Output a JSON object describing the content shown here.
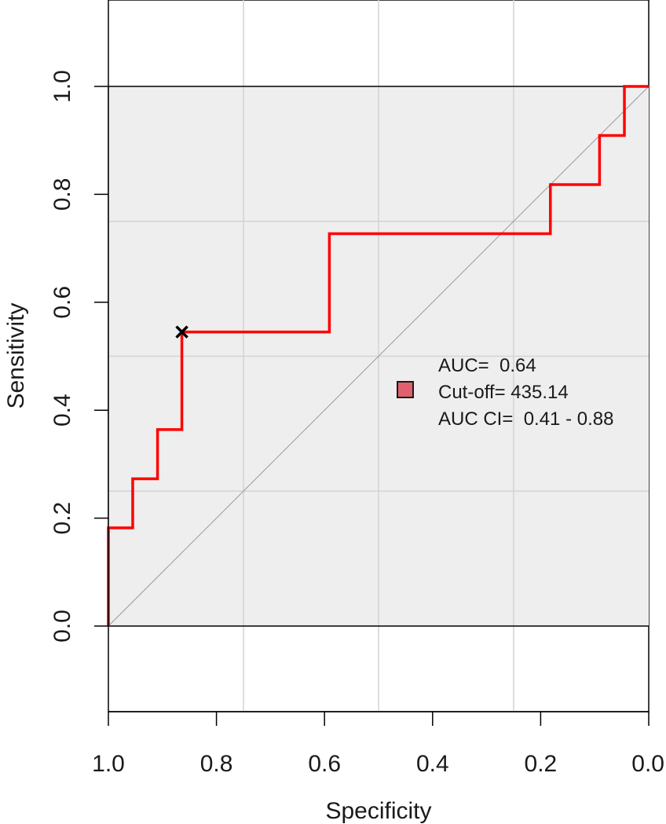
{
  "chart_data": {
    "type": "line",
    "title": "",
    "xlabel": "Specificity",
    "ylabel": "Sensitivity",
    "x_axis_reversed": true,
    "xlim": [
      1.0,
      0.0
    ],
    "ylim": [
      0.0,
      1.0
    ],
    "x_ticks": [
      "1.0",
      "0.8",
      "0.6",
      "0.4",
      "0.2",
      "0.0"
    ],
    "y_ticks": [
      "0.0",
      "0.2",
      "0.4",
      "0.6",
      "0.8",
      "1.0"
    ],
    "grid": true,
    "roc_curve": {
      "color": "#ff0000",
      "points": [
        {
          "specificity": 1.0,
          "sensitivity": 0.0
        },
        {
          "specificity": 1.0,
          "sensitivity": 0.182
        },
        {
          "specificity": 0.955,
          "sensitivity": 0.182
        },
        {
          "specificity": 0.955,
          "sensitivity": 0.273
        },
        {
          "specificity": 0.909,
          "sensitivity": 0.273
        },
        {
          "specificity": 0.909,
          "sensitivity": 0.364
        },
        {
          "specificity": 0.864,
          "sensitivity": 0.364
        },
        {
          "specificity": 0.864,
          "sensitivity": 0.545
        },
        {
          "specificity": 0.591,
          "sensitivity": 0.545
        },
        {
          "specificity": 0.591,
          "sensitivity": 0.727
        },
        {
          "specificity": 0.182,
          "sensitivity": 0.727
        },
        {
          "specificity": 0.182,
          "sensitivity": 0.818
        },
        {
          "specificity": 0.091,
          "sensitivity": 0.818
        },
        {
          "specificity": 0.091,
          "sensitivity": 0.909
        },
        {
          "specificity": 0.045,
          "sensitivity": 0.909
        },
        {
          "specificity": 0.045,
          "sensitivity": 1.0
        },
        {
          "specificity": 0.0,
          "sensitivity": 1.0
        }
      ]
    },
    "reference_line": {
      "from": [
        1.0,
        0.0
      ],
      "to": [
        0.0,
        1.0
      ],
      "color": "#999999"
    },
    "cutoff_point": {
      "specificity": 0.864,
      "sensitivity": 0.545,
      "marker": "x"
    },
    "annotations": [
      "AUC=  0.64",
      "Cut-off= 435.14",
      "AUC CI=  0.41 - 0.88"
    ],
    "legend_swatch_color": "#e0606e",
    "legend_position": "center-right",
    "colors": {
      "curve": "#ff0000",
      "roc_area": "#eeeeee",
      "grid": "#d3d3d3"
    }
  }
}
